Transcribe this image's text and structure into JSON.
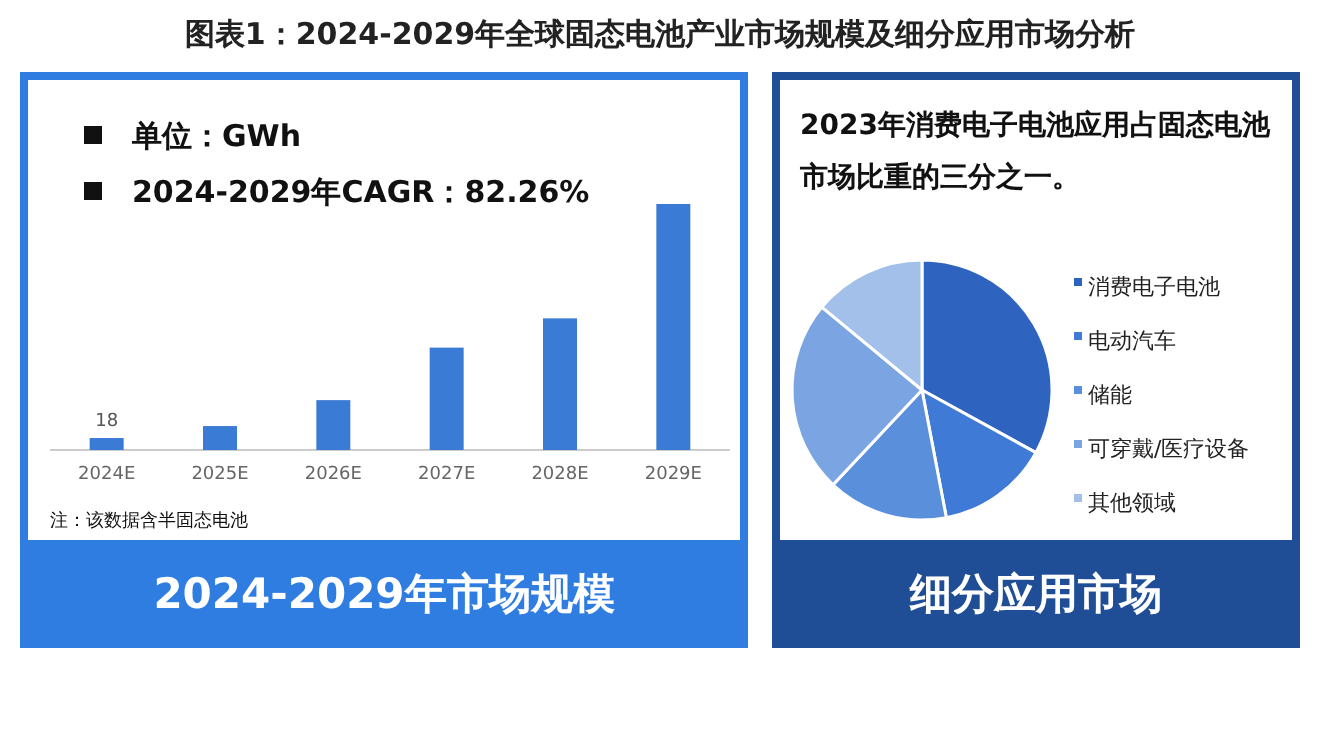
{
  "chart_data": [
    {
      "type": "bar",
      "title": "图表1：2024-2029年全球固态电池产业市场规模及细分应用市场分析",
      "subtitle": "2024-2029年市场规模",
      "categories": [
        "2024E",
        "2025E",
        "2026E",
        "2027E",
        "2028E",
        "2029E"
      ],
      "values": [
        18,
        36,
        75,
        154,
        198,
        370
      ],
      "color": "#3a7bd5",
      "value_labels": [
        "18",
        null,
        null,
        null,
        null,
        null
      ],
      "annotations": [
        "单位：GWh",
        "2024-2029年CAGR：82.26%",
        "注：该数据含半固态电池"
      ]
    },
    {
      "type": "pie",
      "title": "细分应用市场",
      "subtitle": "2023年消费电子电池应用占固态电池市场比重的三分之一。",
      "categories": [
        "消费电子电池",
        "电动汽车",
        "储能",
        "可穿戴/医疗设备",
        "其他领域"
      ],
      "values": [
        33,
        14,
        15,
        24,
        14
      ],
      "colors": [
        "#2e64c0",
        "#3f7bd6",
        "#5a8fdc",
        "#7ba5e2",
        "#a2c0ea"
      ],
      "legend": "right"
    }
  ]
}
